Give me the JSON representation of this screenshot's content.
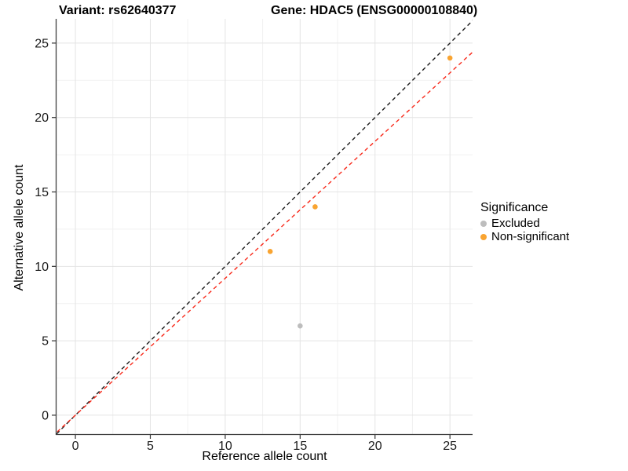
{
  "titles": {
    "variant": "Variant: rs62640377",
    "gene": "Gene: HDAC5 (ENSG00000108840)"
  },
  "chart_data": {
    "type": "scatter",
    "xlabel": "Reference allele count",
    "ylabel": "Alternative allele count",
    "xlim": [
      -1.26,
      26.51
    ],
    "ylim": [
      -1.27,
      26.63
    ],
    "x_ticks": [
      0,
      5,
      10,
      15,
      20,
      25
    ],
    "y_ticks": [
      0,
      5,
      10,
      15,
      20,
      25
    ],
    "x_minor_ticks": [
      2.5,
      7.5,
      12.5,
      17.5,
      22.5
    ],
    "y_minor_ticks": [
      2.5,
      7.5,
      12.5,
      17.5,
      22.5
    ],
    "grid": true,
    "legend": {
      "title": "Significance",
      "position": "right",
      "entries": [
        {
          "label": "Excluded",
          "color": "#BDBDBD"
        },
        {
          "label": "Non-significant",
          "color": "#F9A431"
        }
      ]
    },
    "series": [
      {
        "name": "Excluded",
        "color": "#BDBDBD",
        "points": [
          [
            15,
            6
          ]
        ]
      },
      {
        "name": "Non-significant",
        "color": "#F9A431",
        "points": [
          [
            13,
            11
          ],
          [
            16,
            14
          ],
          [
            25,
            24
          ]
        ]
      }
    ],
    "lines": [
      {
        "name": "identity",
        "slope": 1.0,
        "intercept": 0,
        "color": "#1A1A1A",
        "dash": "5 4"
      },
      {
        "name": "fit",
        "slope": 0.92,
        "intercept": 0,
        "color": "#F82A1B",
        "dash": "5 4"
      }
    ],
    "colors": {
      "grid_major": "#E4E4E4",
      "grid_minor": "#F1F1F1",
      "axis_line": "#3F3F3F",
      "tick": "#333333",
      "tick_label": "#1A1A1A"
    }
  }
}
